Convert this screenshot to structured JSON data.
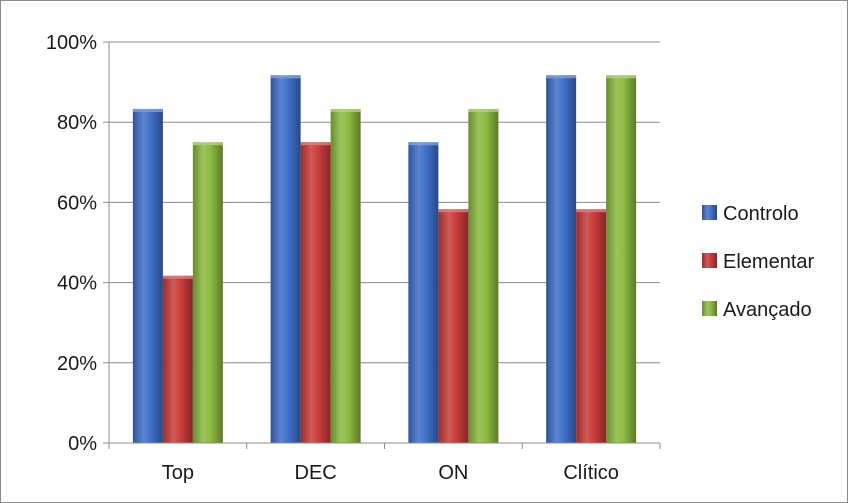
{
  "chart_data": {
    "type": "bar",
    "title": "",
    "xlabel": "",
    "ylabel": "",
    "categories": [
      "Top",
      "DEC",
      "ON",
      "Clítico"
    ],
    "series": [
      {
        "name": "Controlo",
        "values": [
          83.3,
          91.7,
          75.0,
          91.7
        ],
        "color": "#3f6fc9"
      },
      {
        "name": "Elementar",
        "values": [
          41.7,
          75.0,
          58.3,
          58.3
        ],
        "color": "#c93c3a"
      },
      {
        "name": "Avançado",
        "values": [
          75.0,
          83.3,
          83.3,
          91.7
        ],
        "color": "#8cba3f"
      }
    ],
    "ylim": [
      0,
      100
    ],
    "yticks": [
      0,
      20,
      40,
      60,
      80,
      100
    ],
    "ytick_labels": [
      "0%",
      "20%",
      "40%",
      "60%",
      "80%",
      "100%"
    ],
    "grid": true,
    "legend_position": "right"
  }
}
